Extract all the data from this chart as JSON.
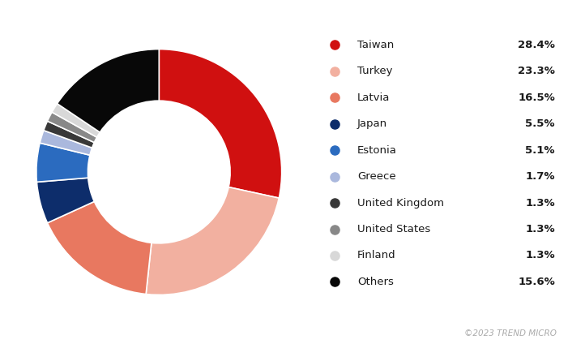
{
  "labels": [
    "Taiwan",
    "Turkey",
    "Latvia",
    "Japan",
    "Estonia",
    "Greece",
    "United Kingdom",
    "United States",
    "Finland",
    "Others"
  ],
  "values": [
    28.4,
    23.3,
    16.5,
    5.5,
    5.1,
    1.7,
    1.3,
    1.3,
    1.3,
    15.6
  ],
  "colors": [
    "#d01010",
    "#f2b0a0",
    "#e87860",
    "#0d2d6b",
    "#2b6bbf",
    "#aab8dd",
    "#383838",
    "#888888",
    "#d8d8d8",
    "#080808"
  ],
  "bg_color": "#ffffff",
  "legend_bg_color": "#ebebeb",
  "copyright_text": "©2023 TREND MICRO",
  "donut_width": 0.42,
  "startangle": 90
}
